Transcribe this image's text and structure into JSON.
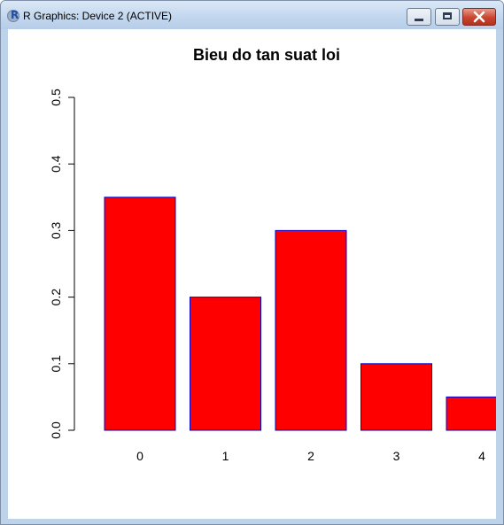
{
  "window": {
    "title": "R Graphics: Device 2 (ACTIVE)",
    "app_icon_letter": "R"
  },
  "chart_data": {
    "type": "bar",
    "title": "Bieu do tan suat loi",
    "categories": [
      "0",
      "1",
      "2",
      "3",
      "4"
    ],
    "values": [
      0.35,
      0.2,
      0.3,
      0.1,
      0.05
    ],
    "ylim": [
      0,
      0.5
    ],
    "yticks": [
      "0.0",
      "0.1",
      "0.2",
      "0.3",
      "0.4",
      "0.5"
    ],
    "bar_fill": "#ff0000",
    "bar_border": "#0000cc",
    "grid": false,
    "legend": "none"
  }
}
